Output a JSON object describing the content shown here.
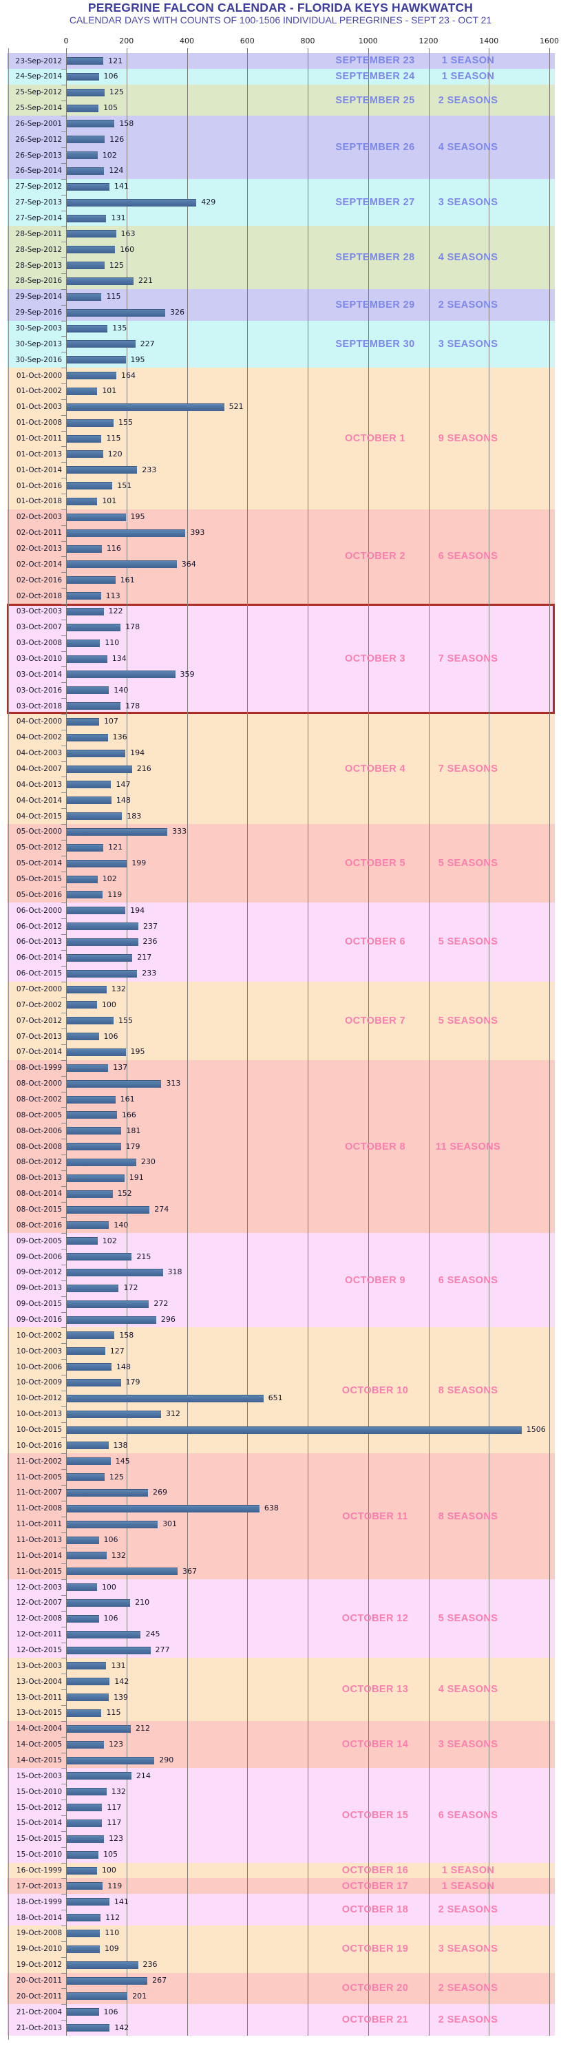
{
  "chart_data": {
    "type": "bar",
    "orientation": "horizontal",
    "title": "PEREGRINE FALCON CALENDAR - FLORIDA KEYS HAWKWATCH",
    "subtitle": "CALENDAR DAYS WITH COUNTS OF 100-1506 INDIVIDUAL PEREGRINES - SEPT 23 - OCT 21",
    "x_axis": {
      "ticks": [
        0,
        200,
        400,
        600,
        800,
        1000,
        1200,
        1400,
        1600
      ],
      "max": 1600,
      "grid": true
    },
    "value_range": [
      100,
      1506
    ],
    "palette": {
      "bands": {
        "lavender": "#ccccf4",
        "cyan": "#cdf6f6",
        "green": "#dde9c6",
        "peach": "#fde5c8",
        "salmon": "#fbcbc4",
        "violet": "#fbdcfa"
      },
      "september_text": "#7D87E9",
      "october_text": "#F97FAE",
      "bar_fill": "#4E74A3",
      "highlight_border": "#AB2F28",
      "grid_color": "#7E7A74",
      "title_color": "#3D3DA0",
      "subtitle_color": "#4545AC",
      "row_text_color": "#16162C"
    },
    "groups": [
      {
        "label": "SEPTEMBER 23",
        "seasons": "1 SEASON",
        "band": "lavender",
        "rows": [
          [
            "23-Sep-2012",
            121
          ]
        ]
      },
      {
        "label": "SEPTEMBER 24",
        "seasons": "1 SEASON",
        "band": "cyan",
        "rows": [
          [
            "24-Sep-2014",
            106
          ]
        ]
      },
      {
        "label": "SEPTEMBER 25",
        "seasons": "2 SEASONS",
        "band": "green",
        "rows": [
          [
            "25-Sep-2012",
            125
          ],
          [
            "25-Sep-2014",
            105
          ]
        ]
      },
      {
        "label": "SEPTEMBER 26",
        "seasons": "4 SEASONS",
        "band": "lavender",
        "rows": [
          [
            "26-Sep-2001",
            158
          ],
          [
            "26-Sep-2012",
            126
          ],
          [
            "26-Sep-2013",
            102
          ],
          [
            "26-Sep-2014",
            124
          ]
        ]
      },
      {
        "label": "SEPTEMBER 27",
        "seasons": "3 SEASONS",
        "band": "cyan",
        "rows": [
          [
            "27-Sep-2012",
            141
          ],
          [
            "27-Sep-2013",
            429
          ],
          [
            "27-Sep-2014",
            131
          ]
        ]
      },
      {
        "label": "SEPTEMBER 28",
        "seasons": "4 SEASONS",
        "band": "green",
        "rows": [
          [
            "28-Sep-2011",
            163
          ],
          [
            "28-Sep-2012",
            160
          ],
          [
            "28-Sep-2013",
            125
          ],
          [
            "28-Sep-2016",
            221
          ]
        ]
      },
      {
        "label": "SEPTEMBER 29",
        "seasons": "2 SEASONS",
        "band": "lavender",
        "rows": [
          [
            "29-Sep-2014",
            115
          ],
          [
            "29-Sep-2016",
            326
          ]
        ]
      },
      {
        "label": "SEPTEMBER 30",
        "seasons": "3 SEASONS",
        "band": "cyan",
        "rows": [
          [
            "30-Sep-2003",
            135
          ],
          [
            "30-Sep-2013",
            227
          ],
          [
            "30-Sep-2016",
            195
          ]
        ]
      },
      {
        "label": "OCTOBER 1",
        "seasons": "9 SEASONS",
        "band": "peach",
        "rows": [
          [
            "01-Oct-2000",
            164
          ],
          [
            "01-Oct-2002",
            101
          ],
          [
            "01-Oct-2003",
            521
          ],
          [
            "01-Oct-2008",
            155
          ],
          [
            "01-Oct-2011",
            115
          ],
          [
            "01-Oct-2013",
            120
          ],
          [
            "01-Oct-2014",
            233
          ],
          [
            "01-Oct-2016",
            151
          ],
          [
            "01-Oct-2018",
            101
          ]
        ]
      },
      {
        "label": "OCTOBER 2",
        "seasons": "6 SEASONS",
        "band": "salmon",
        "rows": [
          [
            "02-Oct-2003",
            195
          ],
          [
            "02-Oct-2011",
            393
          ],
          [
            "02-Oct-2013",
            116
          ],
          [
            "02-Oct-2014",
            364
          ],
          [
            "02-Oct-2016",
            161
          ],
          [
            "02-Oct-2018",
            113
          ]
        ]
      },
      {
        "label": "OCTOBER 3",
        "seasons": "7 SEASONS",
        "band": "violet",
        "highlight": true,
        "rows": [
          [
            "03-Oct-2003",
            122
          ],
          [
            "03-Oct-2007",
            178
          ],
          [
            "03-Oct-2008",
            110
          ],
          [
            "03-Oct-2010",
            134
          ],
          [
            "03-Oct-2014",
            359
          ],
          [
            "03-Oct-2016",
            140
          ],
          [
            "03-Oct-2018",
            178
          ]
        ]
      },
      {
        "label": "OCTOBER 4",
        "seasons": "7 SEASONS",
        "band": "peach",
        "rows": [
          [
            "04-Oct-2000",
            107
          ],
          [
            "04-Oct-2002",
            136
          ],
          [
            "04-Oct-2003",
            194
          ],
          [
            "04-Oct-2007",
            216
          ],
          [
            "04-Oct-2013",
            147
          ],
          [
            "04-Oct-2014",
            148
          ],
          [
            "04-Oct-2015",
            183
          ]
        ]
      },
      {
        "label": "OCTOBER 5",
        "seasons": "5 SEASONS",
        "band": "salmon",
        "rows": [
          [
            "05-Oct-2000",
            333
          ],
          [
            "05-Oct-2012",
            121
          ],
          [
            "05-Oct-2014",
            199
          ],
          [
            "05-Oct-2015",
            102
          ],
          [
            "05-Oct-2016",
            119
          ]
        ]
      },
      {
        "label": "OCTOBER 6",
        "seasons": "5 SEASONS",
        "band": "violet",
        "rows": [
          [
            "06-Oct-2000",
            194
          ],
          [
            "06-Oct-2012",
            237
          ],
          [
            "06-Oct-2013",
            236
          ],
          [
            "06-Oct-2014",
            217
          ],
          [
            "06-Oct-2015",
            233
          ]
        ]
      },
      {
        "label": "OCTOBER 7",
        "seasons": "5 SEASONS",
        "band": "peach",
        "rows": [
          [
            "07-Oct-2000",
            132
          ],
          [
            "07-Oct-2002",
            100
          ],
          [
            "07-Oct-2012",
            155
          ],
          [
            "07-Oct-2013",
            106
          ],
          [
            "07-Oct-2014",
            195
          ]
        ]
      },
      {
        "label": "OCTOBER 8",
        "seasons": "11 SEASONS",
        "band": "salmon",
        "rows": [
          [
            "08-Oct-1999",
            137
          ],
          [
            "08-Oct-2000",
            313
          ],
          [
            "08-Oct-2002",
            161
          ],
          [
            "08-Oct-2005",
            166
          ],
          [
            "08-Oct-2006",
            181
          ],
          [
            "08-Oct-2008",
            179
          ],
          [
            "08-Oct-2012",
            230
          ],
          [
            "08-Oct-2013",
            191
          ],
          [
            "08-Oct-2014",
            152
          ],
          [
            "08-Oct-2015",
            274
          ],
          [
            "08-Oct-2016",
            140
          ]
        ]
      },
      {
        "label": "OCTOBER 9",
        "seasons": "6 SEASONS",
        "band": "violet",
        "rows": [
          [
            "09-Oct-2005",
            102
          ],
          [
            "09-Oct-2006",
            215
          ],
          [
            "09-Oct-2012",
            318
          ],
          [
            "09-Oct-2013",
            172
          ],
          [
            "09-Oct-2015",
            272
          ],
          [
            "09-Oct-2016",
            296
          ]
        ]
      },
      {
        "label": "OCTOBER 10",
        "seasons": "8 SEASONS",
        "band": "peach",
        "rows": [
          [
            "10-Oct-2002",
            158
          ],
          [
            "10-Oct-2003",
            127
          ],
          [
            "10-Oct-2006",
            148
          ],
          [
            "10-Oct-2009",
            179
          ],
          [
            "10-Oct-2012",
            651
          ],
          [
            "10-Oct-2013",
            312
          ],
          [
            "10-Oct-2015",
            1506
          ],
          [
            "10-Oct-2016",
            138
          ]
        ]
      },
      {
        "label": "OCTOBER 11",
        "seasons": "8 SEASONS",
        "band": "salmon",
        "rows": [
          [
            "11-Oct-2002",
            145
          ],
          [
            "11-Oct-2005",
            125
          ],
          [
            "11-Oct-2007",
            269
          ],
          [
            "11-Oct-2008",
            638
          ],
          [
            "11-Oct-2011",
            301
          ],
          [
            "11-Oct-2013",
            106
          ],
          [
            "11-Oct-2014",
            132
          ],
          [
            "11-Oct-2015",
            367
          ]
        ]
      },
      {
        "label": "OCTOBER 12",
        "seasons": "5 SEASONS",
        "band": "violet",
        "rows": [
          [
            "12-Oct-2003",
            100
          ],
          [
            "12-Oct-2007",
            210
          ],
          [
            "12-Oct-2008",
            106
          ],
          [
            "12-Oct-2011",
            245
          ],
          [
            "12-Oct-2015",
            277
          ]
        ]
      },
      {
        "label": "OCTOBER 13",
        "seasons": "4 SEASONS",
        "band": "peach",
        "rows": [
          [
            "13-Oct-2003",
            131
          ],
          [
            "13-Oct-2004",
            142
          ],
          [
            "13-Oct-2011",
            139
          ],
          [
            "13-Oct-2015",
            115
          ]
        ]
      },
      {
        "label": "OCTOBER 14",
        "seasons": "3 SEASONS",
        "band": "salmon",
        "rows": [
          [
            "14-Oct-2004",
            212
          ],
          [
            "14-Oct-2005",
            123
          ],
          [
            "14-Oct-2015",
            290
          ]
        ]
      },
      {
        "label": "OCTOBER 15",
        "seasons": "6 SEASONS",
        "band": "violet",
        "rows": [
          [
            "15-Oct-2003",
            214
          ],
          [
            "15-Oct-2010",
            132
          ],
          [
            "15-Oct-2012",
            117
          ],
          [
            "15-Oct-2014",
            117
          ],
          [
            "15-Oct-2015",
            123
          ],
          [
            "15-Oct-2010",
            105
          ]
        ]
      },
      {
        "label": "OCTOBER 16",
        "seasons": "1 SEASON",
        "band": "peach",
        "rows": [
          [
            "16-Oct-1999",
            100
          ]
        ]
      },
      {
        "label": "OCTOBER 17",
        "seasons": "1 SEASON",
        "band": "salmon",
        "rows": [
          [
            "17-Oct-2013",
            119
          ]
        ]
      },
      {
        "label": "OCTOBER 18",
        "seasons": "2 SEASONS",
        "band": "violet",
        "rows": [
          [
            "18-Oct-1999",
            141
          ],
          [
            "18-Oct-2014",
            112
          ]
        ]
      },
      {
        "label": "OCTOBER 19",
        "seasons": "3 SEASONS",
        "band": "peach",
        "rows": [
          [
            "19-Oct-2008",
            110
          ],
          [
            "19-Oct-2010",
            109
          ],
          [
            "19-Oct-2012",
            236
          ]
        ]
      },
      {
        "label": "OCTOBER 20",
        "seasons": "2 SEASONS",
        "band": "salmon",
        "rows": [
          [
            "20-Oct-2011",
            267
          ],
          [
            "20-Oct-2011",
            201
          ]
        ]
      },
      {
        "label": "OCTOBER 21",
        "seasons": "2 SEASONS",
        "band": "violet",
        "rows": [
          [
            "21-Oct-2004",
            106
          ],
          [
            "21-Oct-2013",
            142
          ]
        ]
      }
    ]
  }
}
